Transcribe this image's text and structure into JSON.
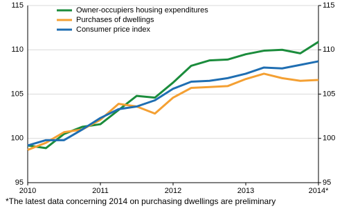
{
  "chart_data": {
    "type": "line",
    "categories": [
      "2010",
      null,
      null,
      null,
      "2011",
      null,
      null,
      null,
      "2012",
      null,
      null,
      null,
      "2013",
      null,
      null,
      null,
      "2014*"
    ],
    "series": [
      {
        "name": "Owner-occupiers housing expenditures",
        "color": "#1b8c3c",
        "values": [
          99.2,
          98.9,
          100.5,
          101.3,
          101.6,
          103.2,
          104.8,
          104.6,
          106.3,
          108.2,
          108.8,
          108.9,
          109.5,
          109.9,
          110.0,
          109.6,
          110.9
        ]
      },
      {
        "name": "Purchases of dwellings",
        "color": "#f4a033",
        "values": [
          98.7,
          99.5,
          100.7,
          101.0,
          102.1,
          103.9,
          103.6,
          102.8,
          104.6,
          105.7,
          105.8,
          105.9,
          106.7,
          107.3,
          106.8,
          106.5,
          106.6
        ]
      },
      {
        "name": "Consumer price index",
        "color": "#1f6eb2",
        "values": [
          99.2,
          99.8,
          99.8,
          101.0,
          102.3,
          103.3,
          103.6,
          104.3,
          105.6,
          106.4,
          106.5,
          106.8,
          107.3,
          108.0,
          107.9,
          108.3,
          108.7
        ]
      }
    ],
    "ylim": [
      95,
      115
    ],
    "yticks": [
      95,
      100,
      105,
      110,
      115
    ],
    "y2lim": [
      95,
      115
    ],
    "y2ticks": [
      95,
      100,
      105,
      110,
      115
    ],
    "grid": true,
    "legend": "top-left",
    "footnote": "*The latest data concerning 2014 on purchasing dwellings are preliminary"
  }
}
